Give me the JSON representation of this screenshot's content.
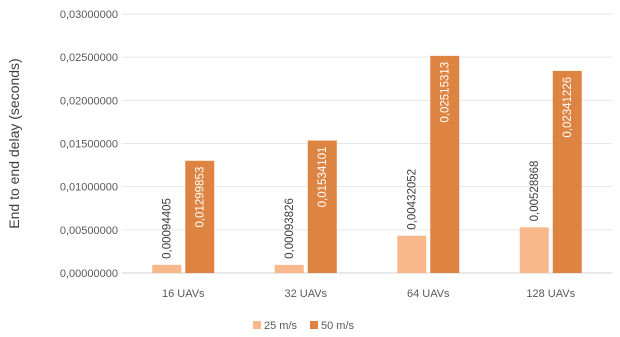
{
  "chart_data": {
    "type": "bar",
    "title": "",
    "xlabel": "",
    "ylabel": "End to end delay (seconds)",
    "categories": [
      "16 UAVs",
      "32 UAVs",
      "64 UAVs",
      "128 UAVs"
    ],
    "series": [
      {
        "name": "25 m/s",
        "color": "#F8B88B",
        "values": [
          0.00094405,
          0.00093826,
          0.00432052,
          0.00528868
        ],
        "labels": [
          "0,00094405",
          "0,00093826",
          "0,00432052",
          "0,00528868"
        ]
      },
      {
        "name": "50 m/s",
        "color": "#DD8443",
        "values": [
          0.01299853,
          0.01534101,
          0.02515313,
          0.02341226
        ],
        "labels": [
          "0,01299853",
          "0,01534101",
          "0,02515313",
          "0,02341226"
        ]
      }
    ],
    "ylim": [
      0,
      0.03
    ],
    "yticks": [
      0,
      0.005,
      0.01,
      0.015,
      0.02,
      0.025,
      0.03
    ],
    "ytick_labels": [
      "0,00000000",
      "0,00500000",
      "0,01000000",
      "0,01500000",
      "0,02000000",
      "0,02500000",
      "0,03000000"
    ],
    "grid": true,
    "legend_position": "bottom"
  }
}
